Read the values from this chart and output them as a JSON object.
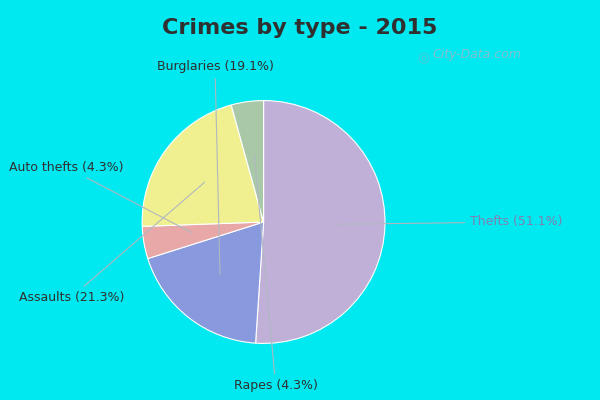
{
  "title": "Crimes by type - 2015",
  "labels": [
    "Thefts",
    "Burglaries",
    "Auto thefts",
    "Assaults",
    "Rapes"
  ],
  "percentages": [
    51.1,
    19.1,
    4.3,
    21.3,
    4.3
  ],
  "colors": [
    "#c0b0d8",
    "#8899dd",
    "#e8a8a8",
    "#f0f090",
    "#a8c8a8"
  ],
  "label_texts": [
    "Thefts (51.1%)",
    "Burglaries (19.1%)",
    "Auto thefts (4.3%)",
    "Assaults (21.3%)",
    "Rapes (4.3%)"
  ],
  "fig_bg": "#00e8f0",
  "plot_bg_left": "#c8e8d8",
  "plot_bg_right": "#e8f4f0",
  "title_fontsize": 16,
  "label_fontsize": 9,
  "watermark": "City-Data.com",
  "title_color": "#303030",
  "label_color": "#303030",
  "thefts_label_color": "#8080b0"
}
